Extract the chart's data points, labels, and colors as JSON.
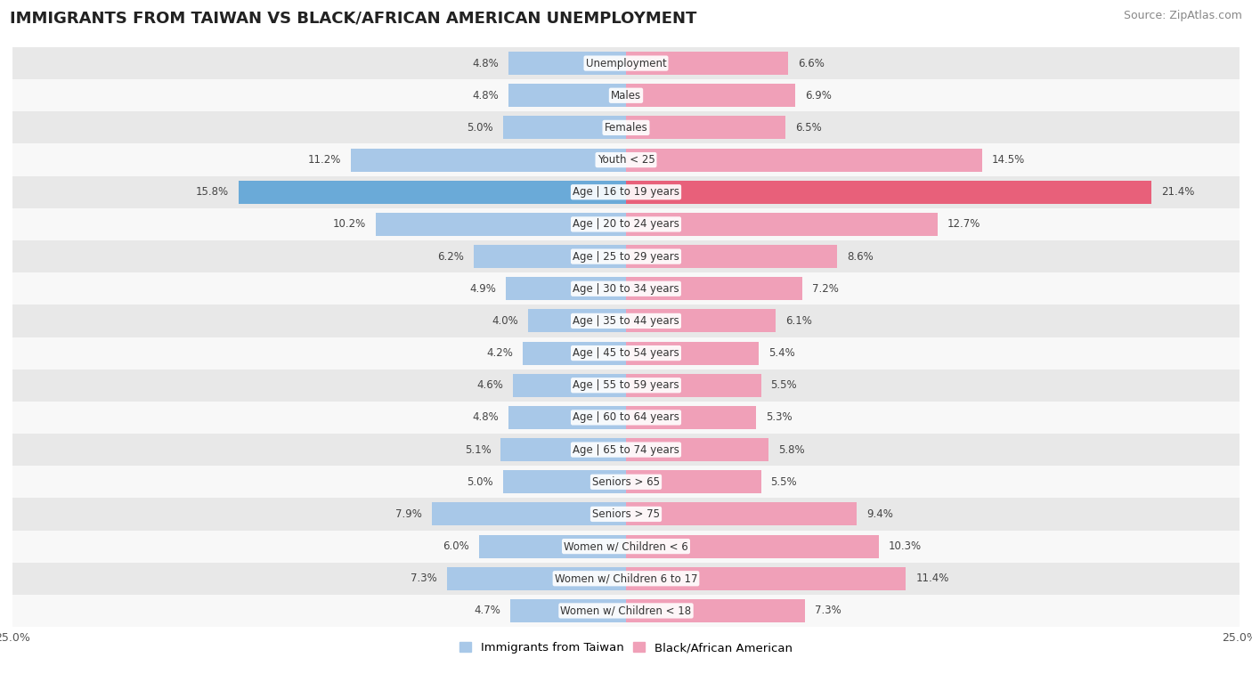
{
  "title": "IMMIGRANTS FROM TAIWAN VS BLACK/AFRICAN AMERICAN UNEMPLOYMENT",
  "source": "Source: ZipAtlas.com",
  "categories": [
    "Unemployment",
    "Males",
    "Females",
    "Youth < 25",
    "Age | 16 to 19 years",
    "Age | 20 to 24 years",
    "Age | 25 to 29 years",
    "Age | 30 to 34 years",
    "Age | 35 to 44 years",
    "Age | 45 to 54 years",
    "Age | 55 to 59 years",
    "Age | 60 to 64 years",
    "Age | 65 to 74 years",
    "Seniors > 65",
    "Seniors > 75",
    "Women w/ Children < 6",
    "Women w/ Children 6 to 17",
    "Women w/ Children < 18"
  ],
  "taiwan_values": [
    4.8,
    4.8,
    5.0,
    11.2,
    15.8,
    10.2,
    6.2,
    4.9,
    4.0,
    4.2,
    4.6,
    4.8,
    5.1,
    5.0,
    7.9,
    6.0,
    7.3,
    4.7
  ],
  "black_values": [
    6.6,
    6.9,
    6.5,
    14.5,
    21.4,
    12.7,
    8.6,
    7.2,
    6.1,
    5.4,
    5.5,
    5.3,
    5.8,
    5.5,
    9.4,
    10.3,
    11.4,
    7.3
  ],
  "taiwan_color": "#a8c8e8",
  "black_color": "#f0a0b8",
  "taiwan_color_highlight": "#6aaad8",
  "black_color_highlight": "#e8607a",
  "label_taiwan": "Immigrants from Taiwan",
  "label_black": "Black/African American",
  "axis_max": 25.0,
  "bar_height": 0.72,
  "bg_row_even_color": "#e8e8e8",
  "bg_row_odd_color": "#f8f8f8",
  "title_fontsize": 13,
  "source_fontsize": 9,
  "cat_fontsize": 8.5,
  "value_fontsize": 8.5
}
